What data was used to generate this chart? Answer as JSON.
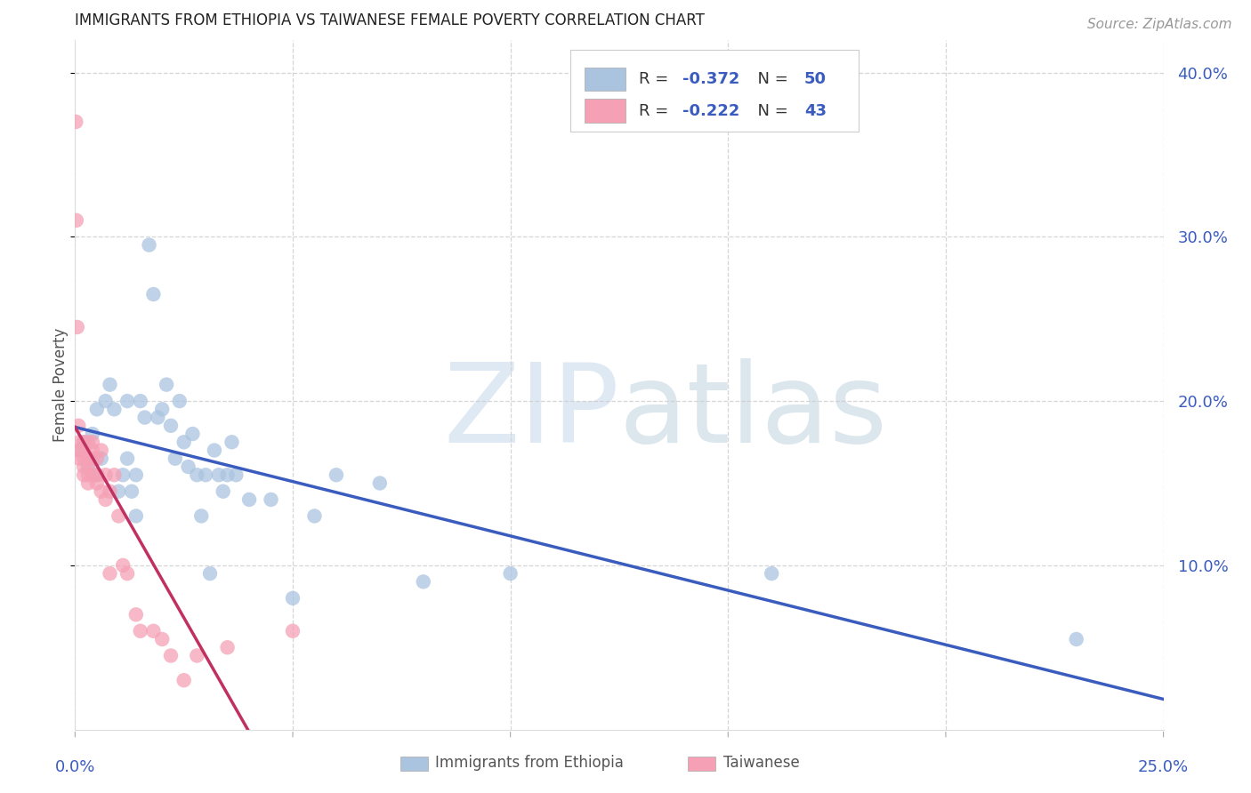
{
  "title": "IMMIGRANTS FROM ETHIOPIA VS TAIWANESE FEMALE POVERTY CORRELATION CHART",
  "source": "Source: ZipAtlas.com",
  "ylabel": "Female Poverty",
  "watermark_zip": "ZIP",
  "watermark_atlas": "atlas",
  "ethiopia_x": [
    0.001,
    0.002,
    0.003,
    0.004,
    0.005,
    0.005,
    0.006,
    0.007,
    0.008,
    0.009,
    0.01,
    0.011,
    0.012,
    0.012,
    0.013,
    0.014,
    0.014,
    0.015,
    0.016,
    0.017,
    0.018,
    0.019,
    0.02,
    0.021,
    0.022,
    0.023,
    0.024,
    0.025,
    0.026,
    0.027,
    0.028,
    0.029,
    0.03,
    0.031,
    0.032,
    0.033,
    0.034,
    0.035,
    0.036,
    0.037,
    0.04,
    0.045,
    0.05,
    0.055,
    0.06,
    0.07,
    0.08,
    0.1,
    0.16,
    0.23
  ],
  "ethiopia_y": [
    0.17,
    0.175,
    0.16,
    0.18,
    0.155,
    0.195,
    0.165,
    0.2,
    0.21,
    0.195,
    0.145,
    0.155,
    0.165,
    0.2,
    0.145,
    0.13,
    0.155,
    0.2,
    0.19,
    0.295,
    0.265,
    0.19,
    0.195,
    0.21,
    0.185,
    0.165,
    0.2,
    0.175,
    0.16,
    0.18,
    0.155,
    0.13,
    0.155,
    0.095,
    0.17,
    0.155,
    0.145,
    0.155,
    0.175,
    0.155,
    0.14,
    0.14,
    0.08,
    0.13,
    0.155,
    0.15,
    0.09,
    0.095,
    0.095,
    0.055
  ],
  "taiwanese_x": [
    0.0002,
    0.0003,
    0.0005,
    0.0008,
    0.001,
    0.001,
    0.001,
    0.002,
    0.002,
    0.002,
    0.002,
    0.002,
    0.003,
    0.003,
    0.003,
    0.003,
    0.003,
    0.004,
    0.004,
    0.004,
    0.004,
    0.005,
    0.005,
    0.005,
    0.006,
    0.006,
    0.007,
    0.007,
    0.008,
    0.008,
    0.009,
    0.01,
    0.011,
    0.012,
    0.014,
    0.015,
    0.018,
    0.02,
    0.022,
    0.025,
    0.028,
    0.035,
    0.05
  ],
  "taiwanese_y": [
    0.37,
    0.31,
    0.245,
    0.185,
    0.175,
    0.17,
    0.165,
    0.175,
    0.17,
    0.165,
    0.16,
    0.155,
    0.175,
    0.165,
    0.16,
    0.155,
    0.15,
    0.175,
    0.17,
    0.165,
    0.155,
    0.165,
    0.155,
    0.15,
    0.17,
    0.145,
    0.155,
    0.14,
    0.145,
    0.095,
    0.155,
    0.13,
    0.1,
    0.095,
    0.07,
    0.06,
    0.06,
    0.055,
    0.045,
    0.03,
    0.045,
    0.05,
    0.06
  ],
  "ethiopia_color": "#aac4e0",
  "taiwanese_color": "#f5a0b5",
  "ethiopia_line_color": "#3a5cbf",
  "taiwanese_line_color": "#c03060",
  "taiwanese_line_dash_color": "#e8a0b8",
  "R_ethiopia": -0.372,
  "N_ethiopia": 50,
  "R_taiwanese": -0.222,
  "N_taiwanese": 43,
  "xlim": [
    0.0,
    0.25
  ],
  "ylim": [
    0.0,
    0.42
  ],
  "xticks": [
    0.0,
    0.05,
    0.1,
    0.15,
    0.2,
    0.25
  ],
  "xtick_labels": [
    "0.0%",
    "",
    "",
    "",
    "",
    "25.0%"
  ],
  "ytick_vals": [
    0.1,
    0.2,
    0.3,
    0.4
  ],
  "ytick_labels": [
    "10.0%",
    "20.0%",
    "30.0%",
    "40.0%"
  ],
  "background_color": "#ffffff",
  "grid_color": "#cccccc"
}
